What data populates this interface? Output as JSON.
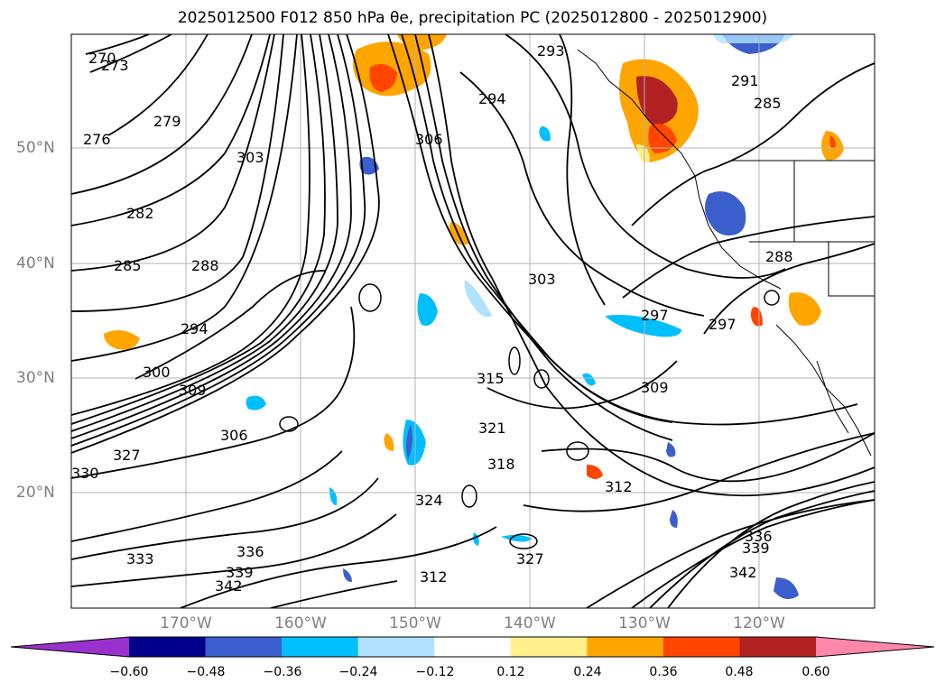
{
  "title": "2025012500 F012 850 hPa θe, precipitation PC (2025012800 - 2025012900)",
  "map": {
    "lat_labels": [
      "50°N",
      "40°N",
      "30°N",
      "20°N"
    ],
    "lon_labels": [
      "170°W",
      "160°W",
      "150°W",
      "140°W",
      "130°W",
      "120°W"
    ],
    "contour_labels": [
      "270",
      "273",
      "276",
      "279",
      "282",
      "285",
      "288",
      "294",
      "294",
      "297",
      "300",
      "303",
      "306",
      "309",
      "312",
      "315",
      "318",
      "321",
      "324",
      "327",
      "330",
      "333",
      "336",
      "339",
      "342",
      "285",
      "288",
      "291",
      "293",
      "297",
      "303",
      "306",
      "309",
      "312",
      "327",
      "336",
      "339",
      "342"
    ]
  },
  "colorbar": {
    "colors": [
      "#9932cc",
      "#00008b",
      "#3a5fcd",
      "#00bfff",
      "#b0e2ff",
      "#ffffff",
      "#fff08c",
      "#ffa500",
      "#ff4500",
      "#b22222",
      "#ff88aa"
    ],
    "ticks": [
      "−0.60",
      "−0.48",
      "−0.36",
      "−0.24",
      "−0.12",
      "0.12",
      "0.24",
      "0.36",
      "0.48",
      "0.60"
    ]
  }
}
